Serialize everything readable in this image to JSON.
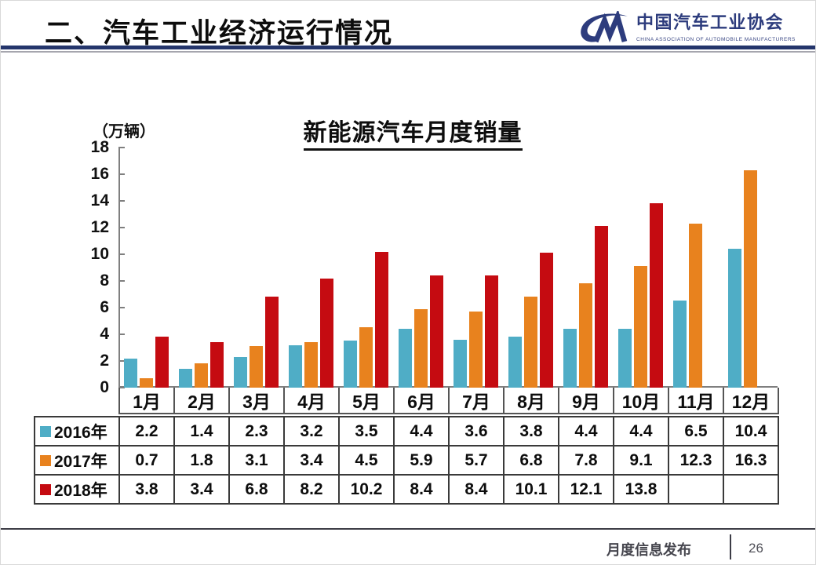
{
  "header": {
    "title": "二、汽车工业经济运行情况",
    "logo": {
      "mark": "CM-swoosh",
      "org_cn": "中国汽车工业协会",
      "org_en": "CHINA ASSOCIATION OF AUTOMOBILE MANUFACTURERS",
      "color": "#2d3c7d"
    }
  },
  "chart": {
    "title": "新能源汽车月度销量",
    "unit_label": "（万辆）"
  },
  "chart_data": {
    "type": "bar",
    "title": "新能源汽车月度销量",
    "unit": "万辆",
    "categories": [
      "1月",
      "2月",
      "3月",
      "4月",
      "5月",
      "6月",
      "7月",
      "8月",
      "9月",
      "10月",
      "11月",
      "12月"
    ],
    "series": [
      {
        "name": "2016年",
        "color": "#4fadc6",
        "values": [
          2.2,
          1.4,
          2.3,
          3.2,
          3.5,
          4.4,
          3.6,
          3.8,
          4.4,
          4.4,
          6.5,
          10.4
        ]
      },
      {
        "name": "2017年",
        "color": "#e8821e",
        "values": [
          0.7,
          1.8,
          3.1,
          3.4,
          4.5,
          5.9,
          5.7,
          6.8,
          7.8,
          9.1,
          12.3,
          16.3
        ]
      },
      {
        "name": "2018年",
        "color": "#c50b11",
        "values": [
          3.8,
          3.4,
          6.8,
          8.2,
          10.2,
          8.4,
          8.4,
          10.1,
          12.1,
          13.8,
          null,
          null
        ]
      }
    ],
    "ylim": [
      0,
      18
    ],
    "y_tick_step": 2,
    "y_ticks": [
      18,
      16,
      14,
      12,
      10,
      8,
      6,
      4,
      2,
      0
    ],
    "grid": false,
    "legend_position": "table-left"
  },
  "footer": {
    "label": "月度信息发布",
    "page_number": "26"
  }
}
